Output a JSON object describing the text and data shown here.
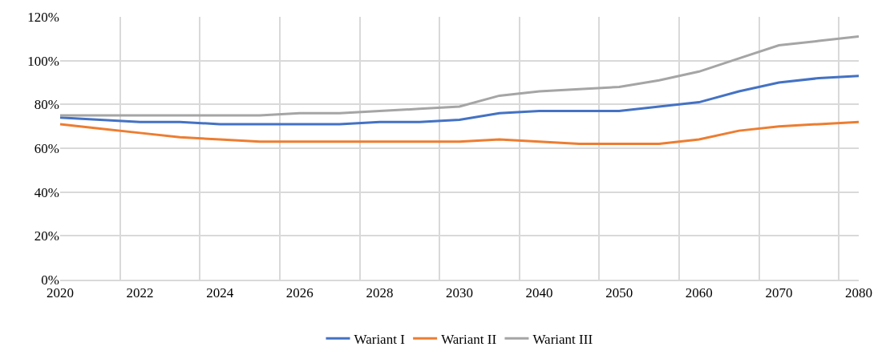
{
  "chart_data": {
    "type": "line",
    "categories": [
      "2020",
      null,
      "2022",
      null,
      "2024",
      null,
      "2026",
      null,
      "2028",
      null,
      "2030",
      null,
      "2040",
      null,
      "2050",
      null,
      "2060",
      null,
      "2070",
      null,
      "2080"
    ],
    "series": [
      {
        "name": "Wariant I",
        "color": "#4472c4",
        "values": [
          74,
          73,
          72,
          72,
          71,
          71,
          71,
          71,
          72,
          72,
          73,
          76,
          77,
          77,
          77,
          79,
          81,
          86,
          90,
          92,
          93
        ]
      },
      {
        "name": "Wariant II",
        "color": "#ed7d31",
        "values": [
          71,
          69,
          67,
          65,
          64,
          63,
          63,
          63,
          63,
          63,
          63,
          64,
          63,
          62,
          62,
          62,
          64,
          68,
          70,
          71,
          72
        ]
      },
      {
        "name": "Wariant III",
        "color": "#a5a5a5",
        "values": [
          75,
          75,
          75,
          75,
          75,
          75,
          76,
          76,
          77,
          78,
          79,
          84,
          86,
          87,
          88,
          91,
          95,
          101,
          107,
          109,
          111
        ]
      }
    ],
    "ylim": [
      0,
      120
    ],
    "yticks": [
      {
        "value": 0,
        "label": "0%"
      },
      {
        "value": 20,
        "label": "20%"
      },
      {
        "value": 40,
        "label": "40%"
      },
      {
        "value": 60,
        "label": "60%"
      },
      {
        "value": 80,
        "label": "80%"
      },
      {
        "value": 100,
        "label": "100%"
      },
      {
        "value": 120,
        "label": "120%"
      }
    ],
    "grid": true,
    "legend": "bottom",
    "marker": "none",
    "line_style": "solid"
  }
}
